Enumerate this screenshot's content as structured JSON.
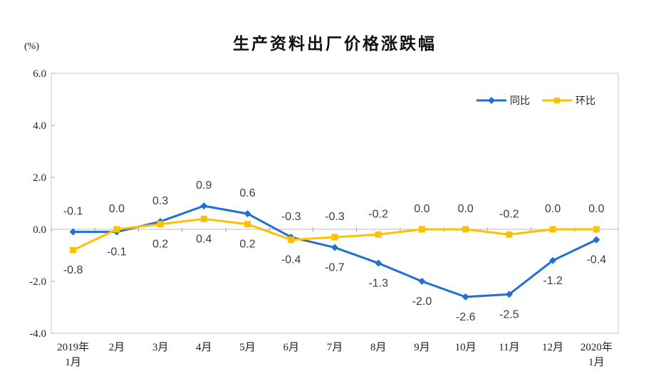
{
  "title": "生产资料出厂价格涨跌幅",
  "unit_label": "(%)",
  "legend": {
    "position": "top-right-inside"
  },
  "colors": {
    "tongbi_blue": "#1f6fd4",
    "huanbi_gold": "#ffc000",
    "plot_border": "#c9c9c9",
    "zero_line": "#bfbfbf",
    "tick_mark": "#a9a9a9",
    "data_label_text": "#3d3d3d",
    "axis_text": "#1f1f1f"
  },
  "chart_data": {
    "type": "line",
    "title": "生产资料出厂价格涨跌幅",
    "ylabel": "(%)",
    "xlabel": "",
    "ylim": [
      -4.0,
      6.0
    ],
    "y_ticks": [
      6.0,
      4.0,
      2.0,
      0.0,
      -2.0,
      -4.0
    ],
    "grid": "zero-line-only",
    "legend_position": "top-right-inside",
    "data_labels": true,
    "categories": [
      [
        "2019年",
        "1月"
      ],
      [
        "2月"
      ],
      [
        "3月"
      ],
      [
        "4月"
      ],
      [
        "5月"
      ],
      [
        "6月"
      ],
      [
        "7月"
      ],
      [
        "8月"
      ],
      [
        "9月"
      ],
      [
        "10月"
      ],
      [
        "11月"
      ],
      [
        "12月"
      ],
      [
        "2020年",
        "1月"
      ]
    ],
    "series": [
      {
        "name": "同比",
        "color": "#1f6fd4",
        "marker": "diamond",
        "values": [
          -0.1,
          -0.1,
          0.3,
          0.9,
          0.6,
          -0.3,
          -0.7,
          -1.3,
          -2.0,
          -2.6,
          -2.5,
          -1.2,
          -0.4
        ]
      },
      {
        "name": "环比",
        "color": "#ffc000",
        "marker": "square",
        "values": [
          -0.8,
          0.0,
          0.2,
          0.4,
          0.2,
          -0.4,
          -0.3,
          -0.2,
          0.0,
          0.0,
          -0.2,
          0.0,
          0.0
        ]
      }
    ]
  }
}
